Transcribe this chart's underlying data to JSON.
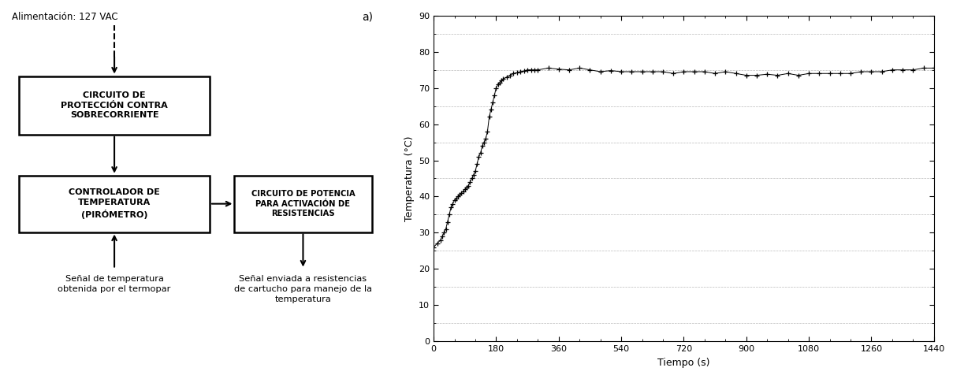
{
  "plot_label": "a)",
  "xlabel": "Tiempo (s)",
  "ylabel": "Temperatura (°C)",
  "xlim": [
    0,
    1440
  ],
  "ylim": [
    0,
    90
  ],
  "xticks": [
    0,
    180,
    360,
    540,
    720,
    900,
    1080,
    1260,
    1440
  ],
  "yticks": [
    0,
    10,
    20,
    30,
    40,
    50,
    60,
    70,
    80,
    90
  ],
  "minor_grid_y": [
    5,
    15,
    25,
    35,
    45,
    55,
    65,
    75,
    85
  ],
  "block1_text": "CIRCUITO DE\nPROTECCIÓN CONTRA\nSOBRECORRIENTE",
  "block2_text": "CONTROLADOR DE\nTEMPERATURA\n(PIRÓMETRO)",
  "block3_text": "CIRCUITO DE POTENCIA\nPARA ACTIVACIÓN DE\nRESISTENCIAS",
  "label_top": "Alimentación: 127 VAC",
  "label_bottom_left": "Señal de temperatura\nobtenida por el termopar",
  "label_bottom_right": "Señal enviada a resistencias\nde cartucho para manejo de la\ntemperatura",
  "bg_color": "#ffffff",
  "line_color": "#000000",
  "marker_color": "#000000",
  "grid_color": "#bbbbbb",
  "time_data": [
    0,
    10,
    20,
    25,
    30,
    35,
    40,
    45,
    50,
    55,
    60,
    65,
    70,
    75,
    80,
    85,
    90,
    95,
    100,
    105,
    110,
    115,
    120,
    125,
    130,
    135,
    140,
    145,
    150,
    155,
    160,
    165,
    170,
    175,
    180,
    185,
    190,
    195,
    200,
    210,
    220,
    230,
    240,
    250,
    260,
    270,
    280,
    290,
    300,
    330,
    360,
    390,
    420,
    450,
    480,
    510,
    540,
    570,
    600,
    630,
    660,
    690,
    720,
    750,
    780,
    810,
    840,
    870,
    900,
    930,
    960,
    990,
    1020,
    1050,
    1080,
    1110,
    1140,
    1170,
    1200,
    1230,
    1260,
    1290,
    1320,
    1350,
    1380,
    1410,
    1440
  ],
  "temp_data": [
    26,
    27,
    28,
    29,
    30,
    31,
    33,
    35,
    37,
    38,
    39,
    39.5,
    40,
    40.5,
    41,
    41.5,
    42,
    42.5,
    43,
    44,
    45,
    46,
    47,
    49,
    51,
    52,
    54,
    55,
    56,
    58,
    62,
    64,
    66,
    68,
    70,
    71,
    71.5,
    72,
    72.5,
    73,
    73.5,
    74,
    74.2,
    74.5,
    74.7,
    75,
    75,
    75,
    75,
    75.5,
    75.2,
    75,
    75.5,
    75,
    74.5,
    74.8,
    74.5,
    74.5,
    74.5,
    74.5,
    74.5,
    74,
    74.5,
    74.5,
    74.5,
    74,
    74.5,
    74,
    73.5,
    73.5,
    73.8,
    73.5,
    74,
    73.5,
    74,
    74,
    74,
    74,
    74,
    74.5,
    74.5,
    74.5,
    75,
    75,
    75,
    75.5,
    75.5
  ]
}
